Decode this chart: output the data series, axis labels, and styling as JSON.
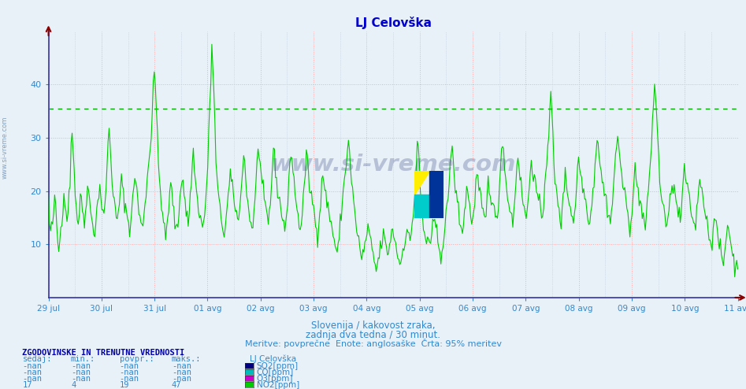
{
  "title": "LJ Celovška",
  "title_color": "#0000cc",
  "bg_color": "#e8f0f8",
  "plot_bg_color": "#e8f0f8",
  "axis_color": "#3333aa",
  "text_color": "#3388cc",
  "yticks": [
    10,
    20,
    30,
    40
  ],
  "ylim": [
    0,
    50
  ],
  "hline_value": 35.5,
  "hline_color": "#00aa00",
  "line_color": "#00cc00",
  "x_tick_labels": [
    "29 jul",
    "30 jul",
    "31 jul",
    "01 avg",
    "02 avg",
    "03 avg",
    "04 avg",
    "05 avg",
    "06 avg",
    "07 avg",
    "08 avg",
    "09 avg",
    "10 avg",
    "11 avg"
  ],
  "subtitle1": "Slovenija / kakovost zraka,",
  "subtitle2": "zadnja dva tedna / 30 minut.",
  "subtitle3": "Meritve: povprečne  Enote: anglosaške  Črta: 95% meritev",
  "legend_title": "LJ Celovška",
  "legend_items": [
    {
      "label": "SO2[ppm]",
      "color": "#000080"
    },
    {
      "label": "CO[ppm]",
      "color": "#00bbbb"
    },
    {
      "label": "O3[ppm]",
      "color": "#cc00cc"
    },
    {
      "label": "NO2[ppm]",
      "color": "#00cc00"
    }
  ],
  "table_header": "ZGODOVINSKE IN TRENUTNE VREDNOSTI",
  "table_cols": [
    "sedaj:",
    "min.:",
    "povpr.:",
    "maks.:"
  ],
  "table_rows": [
    [
      "-nan",
      "-nan",
      "-nan",
      "-nan"
    ],
    [
      "-nan",
      "-nan",
      "-nan",
      "-nan"
    ],
    [
      "-nan",
      "-nan",
      "-nan",
      "-nan"
    ],
    [
      "17",
      "4",
      "19",
      "47"
    ]
  ],
  "watermark": "www.si-vreme.com"
}
